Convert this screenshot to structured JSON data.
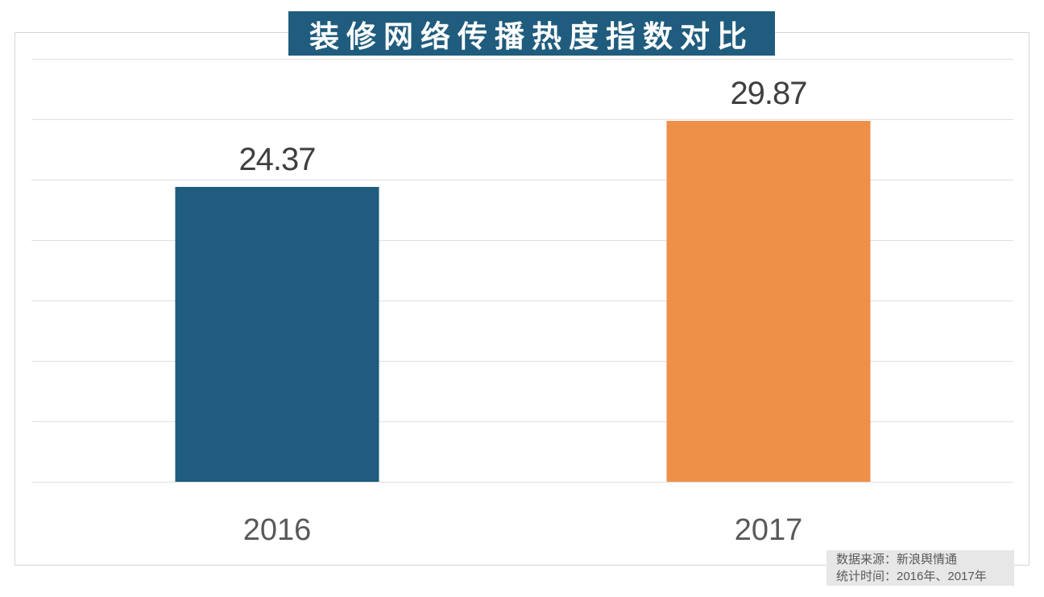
{
  "title": {
    "text": "装修网络传播热度指数对比",
    "bg_color": "#1f5c7d",
    "text_color": "#ffffff"
  },
  "source_note": {
    "line1": "数据来源：新浪舆情通",
    "line2": "统计时间：2016年、2017年",
    "bg_color": "#e7e7e7",
    "text_color": "#595959"
  },
  "chart_data": {
    "type": "bar",
    "title": "装修网络传播热度指数对比",
    "categories": [
      "2016",
      "2017"
    ],
    "values": [
      24.37,
      29.87
    ],
    "value_labels": [
      "24.37",
      "29.87"
    ],
    "bar_colors": [
      "#1f5c7d",
      "#ef9049"
    ],
    "xlabel": "",
    "ylabel": "",
    "ylim": [
      0,
      35
    ],
    "gridline_step": 5,
    "grid": true,
    "legend": false,
    "value_label_color": "#3f3f3f",
    "category_label_color": "#595959"
  }
}
